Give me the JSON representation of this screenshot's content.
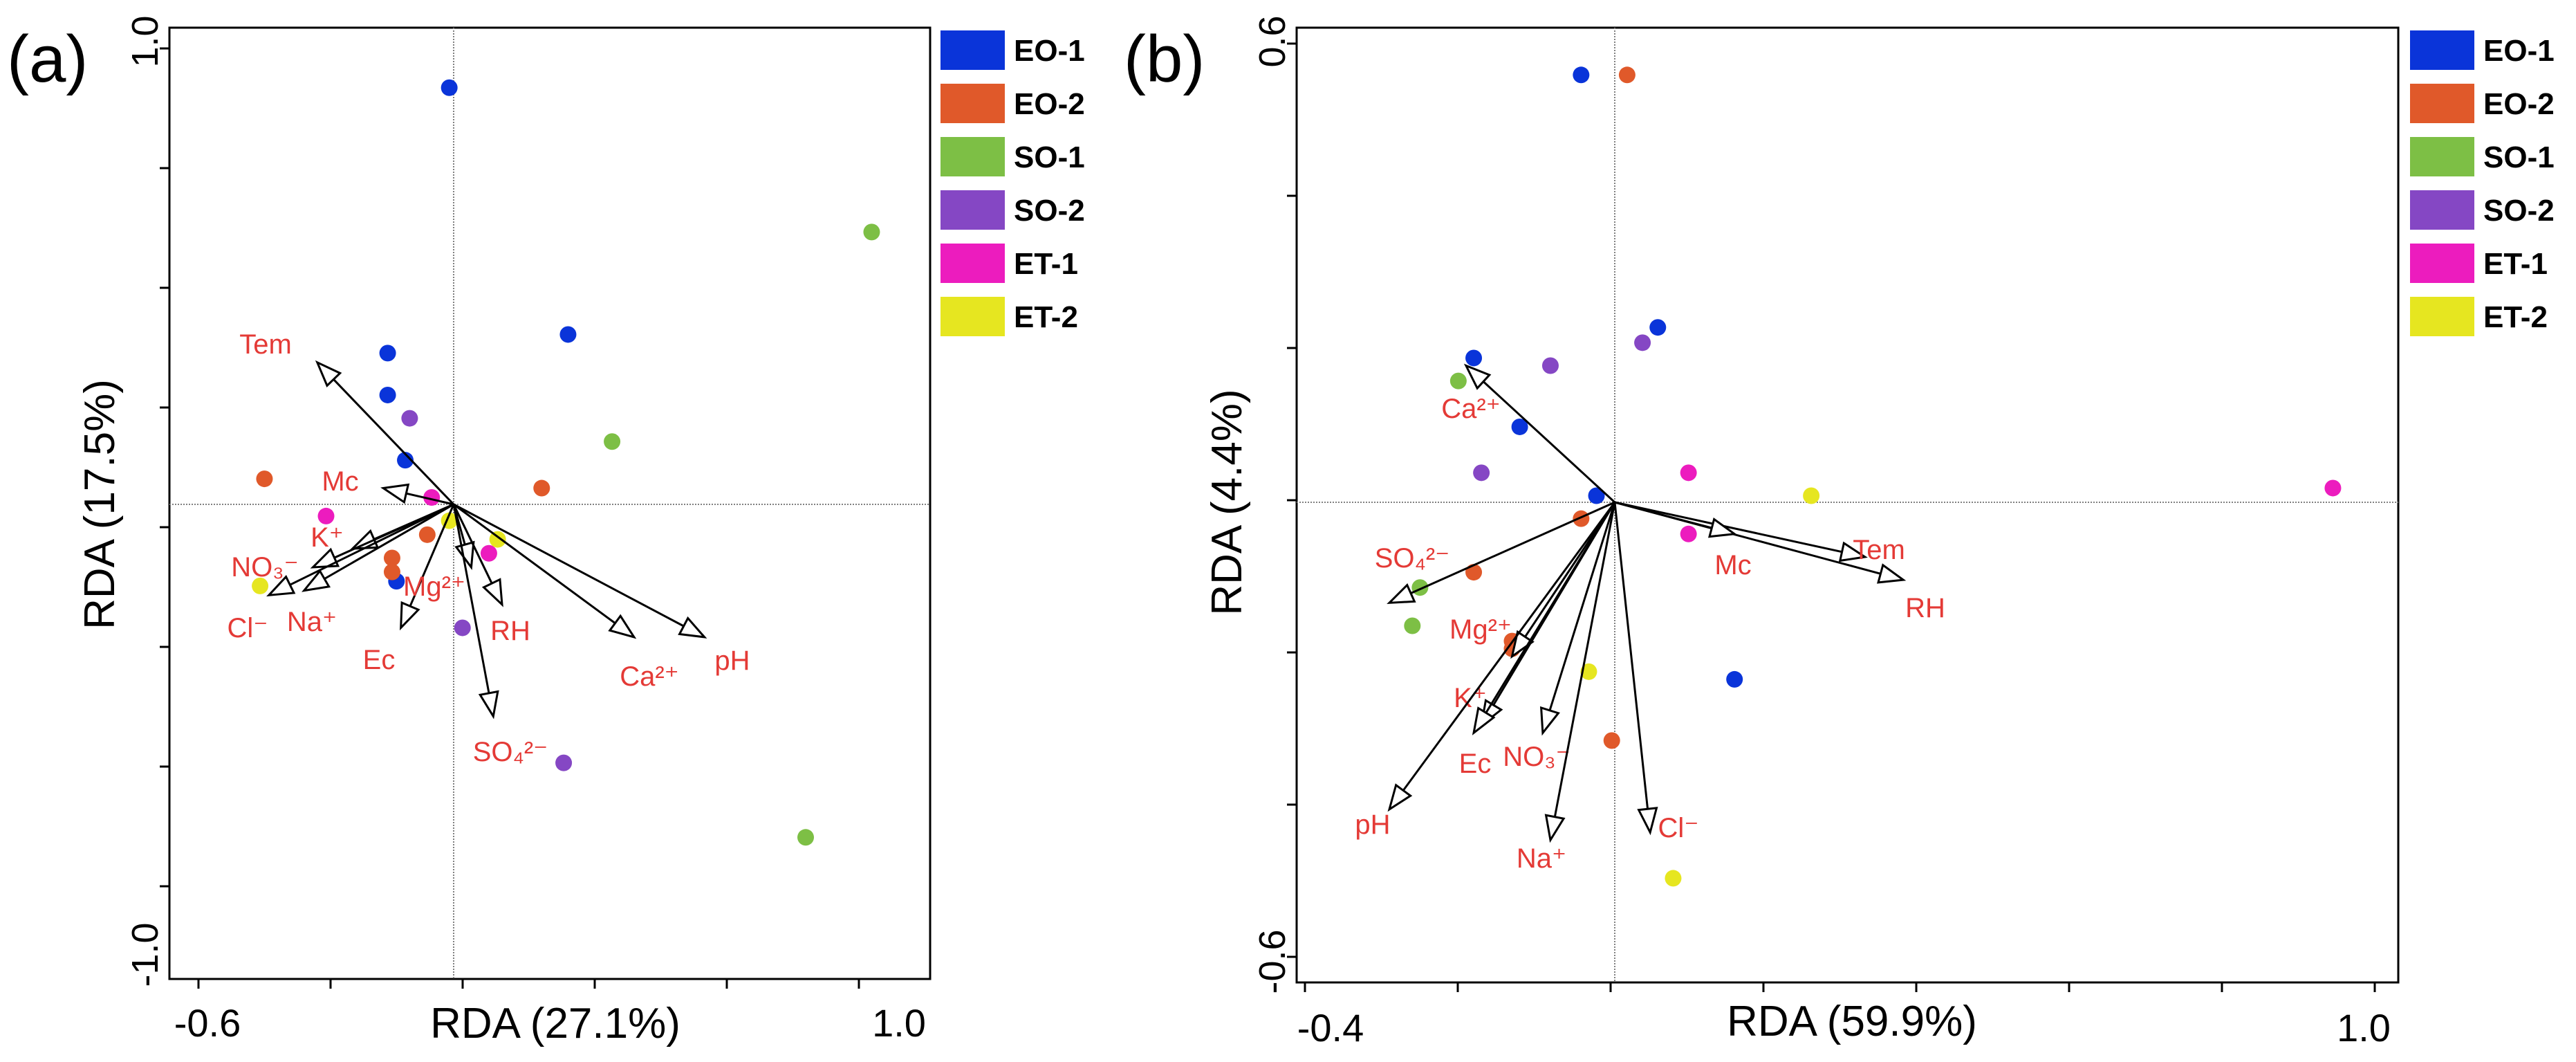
{
  "colors": {
    "EO-1": "#0a34d9",
    "EO-2": "#e0592a",
    "SO-1": "#7dbf45",
    "SO-2": "#8547c4",
    "ET-1": "#ec1cbe",
    "ET-2": "#e6e620",
    "label": "#e43a36",
    "axis": "#000000"
  },
  "legend_entries": [
    "EO-1",
    "EO-2",
    "SO-1",
    "SO-2",
    "ET-1",
    "ET-2"
  ],
  "chart_data": [
    {
      "type": "scatter",
      "panel_label": "(a)",
      "xlabel": "RDA (27.1%)",
      "ylabel": "RDA (17.5%)",
      "xlim": [
        -0.6,
        1.0
      ],
      "ylim": [
        -1.0,
        1.0
      ],
      "x_tick_labels": [
        "-0.6",
        "1.0"
      ],
      "y_tick_labels": [
        "1.0",
        "-1.0"
      ],
      "reference_lines": {
        "x": 0,
        "y": 0
      },
      "legend": "right",
      "series": [
        {
          "name": "EO-1",
          "points": [
            [
              -0.03,
              0.88
            ],
            [
              0.24,
              0.35
            ],
            [
              -0.17,
              0.31
            ],
            [
              -0.17,
              0.22
            ],
            [
              -0.13,
              0.08
            ],
            [
              -0.15,
              -0.18
            ]
          ]
        },
        {
          "name": "EO-2",
          "points": [
            [
              -0.45,
              0.04
            ],
            [
              0.18,
              0.02
            ],
            [
              -0.08,
              -0.08
            ],
            [
              -0.16,
              -0.13
            ],
            [
              -0.16,
              -0.16
            ]
          ]
        },
        {
          "name": "SO-1",
          "points": [
            [
              0.93,
              0.57
            ],
            [
              0.34,
              0.12
            ],
            [
              0.78,
              -0.73
            ]
          ]
        },
        {
          "name": "SO-2",
          "points": [
            [
              -0.12,
              0.17
            ],
            [
              0.0,
              -0.28
            ],
            [
              0.23,
              -0.57
            ]
          ]
        },
        {
          "name": "ET-1",
          "points": [
            [
              -0.31,
              -0.04
            ],
            [
              -0.07,
              0.0
            ],
            [
              0.06,
              -0.12
            ]
          ]
        },
        {
          "name": "ET-2",
          "points": [
            [
              -0.46,
              -0.19
            ],
            [
              -0.03,
              -0.05
            ],
            [
              0.08,
              -0.09
            ]
          ]
        }
      ],
      "vectors": [
        {
          "label": "Tem",
          "x": -0.33,
          "y": 0.29
        },
        {
          "label": "Mc",
          "x": -0.18,
          "y": 0.02
        },
        {
          "label": "K⁺",
          "x": -0.25,
          "y": -0.11
        },
        {
          "label": "NO₃⁻",
          "x": -0.34,
          "y": -0.15
        },
        {
          "label": "Cl⁻",
          "x": -0.44,
          "y": -0.21
        },
        {
          "label": "Na⁺",
          "x": -0.36,
          "y": -0.2
        },
        {
          "label": "Ec",
          "x": -0.14,
          "y": -0.28
        },
        {
          "label": "Mg²⁺",
          "x": 0.02,
          "y": -0.15
        },
        {
          "label": "RH",
          "x": 0.09,
          "y": -0.23
        },
        {
          "label": "SO₄²⁻",
          "x": 0.07,
          "y": -0.47
        },
        {
          "label": "Ca²⁺",
          "x": 0.39,
          "y": -0.3
        },
        {
          "label": "pH",
          "x": 0.55,
          "y": -0.3
        }
      ]
    },
    {
      "type": "scatter",
      "panel_label": "(b)",
      "xlabel": "RDA (59.9%)",
      "ylabel": "RDA (4.4%)",
      "xlim": [
        -0.4,
        1.0
      ],
      "ylim": [
        -0.6,
        0.6
      ],
      "x_tick_labels": [
        "-0.4",
        "1.0"
      ],
      "y_tick_labels": [
        "0.6",
        "-0.6"
      ],
      "reference_lines": {
        "x": 0,
        "y": 0
      },
      "legend": "right",
      "series": [
        {
          "name": "EO-1",
          "points": [
            [
              -0.04,
              0.55
            ],
            [
              0.06,
              0.22
            ],
            [
              -0.18,
              0.18
            ],
            [
              -0.12,
              0.09
            ],
            [
              -0.02,
              0.0
            ],
            [
              0.16,
              -0.24
            ]
          ]
        },
        {
          "name": "EO-2",
          "points": [
            [
              0.02,
              0.55
            ],
            [
              -0.04,
              -0.03
            ],
            [
              -0.18,
              -0.1
            ],
            [
              -0.13,
              -0.19
            ],
            [
              -0.13,
              -0.2
            ],
            [
              0.0,
              -0.32
            ]
          ]
        },
        {
          "name": "SO-1",
          "points": [
            [
              -0.2,
              0.15
            ],
            [
              -0.25,
              -0.12
            ],
            [
              -0.26,
              -0.17
            ]
          ]
        },
        {
          "name": "SO-2",
          "points": [
            [
              0.04,
              0.2
            ],
            [
              -0.08,
              0.17
            ],
            [
              -0.17,
              0.03
            ]
          ]
        },
        {
          "name": "ET-1",
          "points": [
            [
              0.1,
              0.03
            ],
            [
              0.1,
              -0.05
            ],
            [
              0.94,
              0.01
            ]
          ]
        },
        {
          "name": "ET-2",
          "points": [
            [
              0.26,
              0.0
            ],
            [
              -0.03,
              -0.23
            ],
            [
              0.08,
              -0.5
            ]
          ]
        }
      ],
      "vectors": [
        {
          "label": "Ca²⁺",
          "x": -0.19,
          "y": 0.17
        },
        {
          "label": "Tem",
          "x": 0.33,
          "y": -0.08
        },
        {
          "label": "RH",
          "x": 0.38,
          "y": -0.11
        },
        {
          "label": "Mc",
          "x": 0.16,
          "y": -0.05
        },
        {
          "label": "SO₄²⁻",
          "x": -0.29,
          "y": -0.14
        },
        {
          "label": "Mg²⁺",
          "x": -0.13,
          "y": -0.21
        },
        {
          "label": "K⁺",
          "x": -0.17,
          "y": -0.3
        },
        {
          "label": "Ec",
          "x": -0.18,
          "y": -0.31
        },
        {
          "label": "NO₃⁻",
          "x": -0.09,
          "y": -0.31
        },
        {
          "label": "Na⁺",
          "x": -0.08,
          "y": -0.45
        },
        {
          "label": "Cl⁻",
          "x": 0.05,
          "y": -0.44
        },
        {
          "label": "pH",
          "x": -0.29,
          "y": -0.41
        }
      ]
    }
  ]
}
